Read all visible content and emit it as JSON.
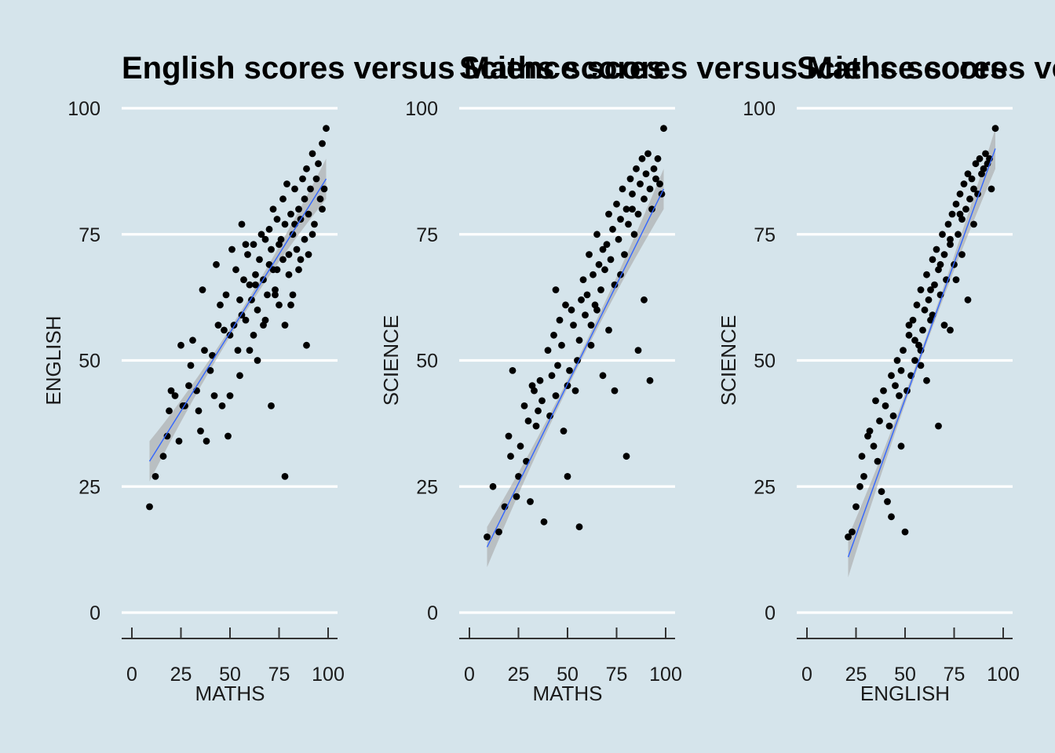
{
  "chart_data": [
    {
      "type": "scatter",
      "title": "English scores versus Maths scores",
      "xlabel": "MATHS",
      "ylabel": "ENGLISH",
      "xlim": [
        0,
        100
      ],
      "ylim": [
        0,
        100
      ],
      "xticks": [
        "0",
        "25",
        "50",
        "75",
        "100"
      ],
      "yticks": [
        "0",
        "25",
        "50",
        "75",
        "100"
      ],
      "grid": "horizontal major gridlines",
      "trend_line": {
        "method": "linear fit with confidence band",
        "from": [
          9,
          30
        ],
        "to": [
          99,
          86
        ]
      },
      "x": [
        9,
        12,
        16,
        18,
        19,
        20,
        22,
        24,
        25,
        26,
        27,
        29,
        30,
        31,
        33,
        34,
        35,
        36,
        37,
        38,
        40,
        41,
        42,
        43,
        44,
        45,
        46,
        47,
        48,
        49,
        50,
        50,
        51,
        52,
        53,
        54,
        55,
        55,
        56,
        57,
        58,
        59,
        60,
        61,
        62,
        62,
        63,
        64,
        65,
        66,
        67,
        68,
        68,
        69,
        70,
        70,
        71,
        72,
        72,
        73,
        74,
        75,
        75,
        76,
        77,
        77,
        78,
        78,
        79,
        80,
        80,
        81,
        82,
        82,
        83,
        84,
        85,
        85,
        86,
        87,
        88,
        88,
        89,
        90,
        90,
        91,
        92,
        93,
        94,
        95,
        96,
        97,
        98,
        99,
        71,
        78,
        89,
        56,
        64,
        60,
        67,
        73,
        81,
        86,
        92,
        97,
        58,
        63,
        74,
        83
      ],
      "y": [
        21,
        27,
        31,
        35,
        40,
        44,
        43,
        34,
        53,
        41,
        41,
        45,
        49,
        54,
        44,
        40,
        36,
        64,
        52,
        34,
        48,
        51,
        43,
        69,
        57,
        61,
        41,
        56,
        63,
        35,
        55,
        43,
        72,
        57,
        68,
        52,
        62,
        47,
        77,
        66,
        58,
        71,
        65,
        62,
        73,
        55,
        67,
        60,
        70,
        75,
        66,
        74,
        58,
        63,
        76,
        69,
        72,
        80,
        68,
        64,
        78,
        73,
        61,
        74,
        82,
        70,
        77,
        57,
        85,
        71,
        67,
        79,
        75,
        63,
        84,
        72,
        80,
        68,
        78,
        86,
        82,
        74,
        88,
        79,
        71,
        84,
        91,
        77,
        86,
        89,
        82,
        93,
        84,
        96,
        41,
        27,
        53,
        59,
        50,
        52,
        57,
        63,
        61,
        70,
        75,
        80,
        73,
        65,
        68,
        77
      ]
    },
    {
      "type": "scatter",
      "title": "Science scores versus Maths scores",
      "xlabel": "MATHS",
      "ylabel": "SCIENCE",
      "xlim": [
        0,
        100
      ],
      "ylim": [
        0,
        100
      ],
      "xticks": [
        "0",
        "25",
        "50",
        "75",
        "100"
      ],
      "yticks": [
        "0",
        "25",
        "50",
        "75",
        "100"
      ],
      "grid": "horizontal major gridlines",
      "trend_line": {
        "method": "linear fit with confidence band",
        "from": [
          9,
          13
        ],
        "to": [
          99,
          84
        ]
      },
      "x": [
        9,
        12,
        15,
        18,
        20,
        21,
        22,
        24,
        25,
        26,
        28,
        29,
        30,
        31,
        32,
        33,
        34,
        35,
        36,
        37,
        38,
        40,
        41,
        42,
        43,
        44,
        45,
        46,
        47,
        48,
        49,
        50,
        51,
        52,
        53,
        54,
        55,
        56,
        57,
        58,
        59,
        60,
        61,
        62,
        63,
        64,
        65,
        66,
        67,
        68,
        69,
        70,
        71,
        72,
        73,
        74,
        75,
        76,
        77,
        78,
        79,
        80,
        81,
        82,
        83,
        84,
        85,
        86,
        87,
        88,
        89,
        90,
        91,
        92,
        93,
        94,
        95,
        96,
        97,
        98,
        99,
        44,
        50,
        56,
        62,
        68,
        74,
        80,
        86,
        92,
        65,
        71,
        77,
        83,
        89
      ],
      "y": [
        15,
        25,
        16,
        21,
        35,
        31,
        48,
        23,
        27,
        33,
        41,
        30,
        38,
        22,
        45,
        44,
        37,
        40,
        46,
        42,
        18,
        52,
        39,
        47,
        55,
        43,
        49,
        58,
        53,
        36,
        61,
        45,
        48,
        60,
        57,
        44,
        50,
        54,
        62,
        66,
        59,
        63,
        71,
        57,
        67,
        61,
        75,
        69,
        64,
        72,
        68,
        73,
        79,
        70,
        76,
        65,
        81,
        74,
        78,
        84,
        71,
        80,
        77,
        86,
        83,
        75,
        88,
        79,
        85,
        90,
        82,
        87,
        91,
        84,
        80,
        88,
        86,
        90,
        85,
        83,
        96,
        64,
        27,
        17,
        53,
        47,
        44,
        31,
        52,
        46,
        60,
        56,
        67,
        80,
        62
      ]
    },
    {
      "type": "scatter",
      "title": "Science scores versus English scores",
      "xlabel": "ENGLISH",
      "ylabel": "SCIENCE",
      "xlim": [
        0,
        100
      ],
      "ylim": [
        0,
        100
      ],
      "xticks": [
        "0",
        "25",
        "50",
        "75",
        "100"
      ],
      "yticks": [
        "0",
        "25",
        "50",
        "75",
        "100"
      ],
      "grid": "horizontal major gridlines",
      "trend_line": {
        "method": "linear fit with confidence band",
        "from": [
          21,
          11
        ],
        "to": [
          96,
          92
        ]
      },
      "x": [
        21,
        23,
        25,
        27,
        28,
        29,
        31,
        32,
        34,
        35,
        36,
        37,
        38,
        39,
        40,
        41,
        42,
        43,
        44,
        45,
        46,
        47,
        48,
        49,
        50,
        51,
        52,
        53,
        54,
        55,
        56,
        57,
        58,
        59,
        60,
        61,
        62,
        63,
        64,
        65,
        66,
        67,
        68,
        69,
        70,
        71,
        72,
        73,
        74,
        75,
        76,
        77,
        78,
        79,
        80,
        81,
        82,
        83,
        84,
        85,
        86,
        87,
        88,
        89,
        90,
        91,
        92,
        93,
        94,
        96,
        43,
        48,
        52,
        55,
        58,
        61,
        64,
        67,
        70,
        73,
        76,
        79,
        82,
        85,
        58,
        63,
        68,
        73,
        78
      ],
      "y": [
        15,
        16,
        21,
        25,
        31,
        27,
        35,
        36,
        33,
        42,
        30,
        38,
        24,
        44,
        41,
        22,
        37,
        47,
        39,
        45,
        50,
        43,
        48,
        52,
        16,
        44,
        55,
        47,
        58,
        50,
        61,
        53,
        64,
        56,
        60,
        67,
        62,
        58,
        70,
        65,
        72,
        68,
        63,
        75,
        71,
        66,
        77,
        73,
        79,
        69,
        81,
        75,
        83,
        78,
        85,
        80,
        87,
        82,
        86,
        84,
        89,
        83,
        90,
        87,
        88,
        91,
        89,
        90,
        84,
        96,
        19,
        33,
        57,
        54,
        49,
        46,
        59,
        37,
        57,
        74,
        66,
        71,
        62,
        77,
        52,
        64,
        69,
        56,
        79
      ]
    }
  ]
}
